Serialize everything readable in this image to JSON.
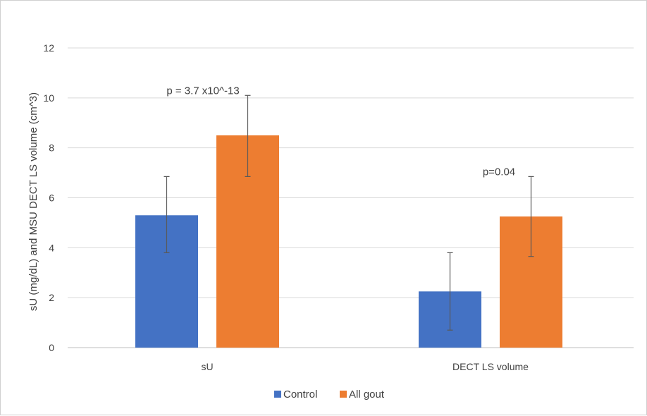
{
  "chart_data": {
    "type": "bar",
    "ylabel": "sU (mg/dL) and MSU DECT LS volume (cm^3)",
    "ylim": [
      0,
      12
    ],
    "yticks": [
      0,
      2,
      4,
      6,
      8,
      10,
      12
    ],
    "grid": true,
    "legend_position": "bottom",
    "categories": [
      "sU",
      "DECT LS volume"
    ],
    "series": [
      {
        "name": "Control",
        "color": "#4472c4",
        "values": [
          5.3,
          2.25
        ],
        "error": [
          [
            3.8,
            6.85
          ],
          [
            0.7,
            3.8
          ]
        ]
      },
      {
        "name": "All gout",
        "color": "#ed7d31",
        "values": [
          8.5,
          5.25
        ],
        "error": [
          [
            6.85,
            10.1
          ],
          [
            3.65,
            6.85
          ]
        ]
      }
    ],
    "annotations": [
      {
        "category": 0,
        "text": "p = 3.7 x10^-13"
      },
      {
        "category": 1,
        "text": "p=0.04"
      }
    ]
  }
}
